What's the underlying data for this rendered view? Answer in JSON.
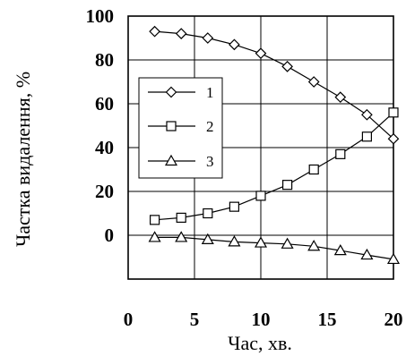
{
  "chart_data": {
    "type": "line",
    "title": "",
    "xlabel": "Час, хв.",
    "ylabel": "Частка видалення, %",
    "xlim": [
      0,
      20
    ],
    "ylim": [
      -20,
      100
    ],
    "x_ticks": [
      0,
      5,
      10,
      15,
      20
    ],
    "x_tick_labels": [
      "0",
      "5",
      "10",
      "15",
      "20"
    ],
    "y_ticks": [
      0,
      20,
      40,
      60,
      80,
      100
    ],
    "y_tick_labels": [
      "0",
      "20",
      "40",
      "60",
      "80",
      "100"
    ],
    "grid": true,
    "legend_position": "center-left",
    "colors": {
      "line": "#000000",
      "marker_fill": "#ffffff",
      "background": "#ffffff"
    },
    "series": [
      {
        "name": "1",
        "marker": "diamond",
        "x": [
          2,
          4,
          6,
          8,
          10,
          12,
          14,
          16,
          18,
          20
        ],
        "y": [
          93,
          92,
          90,
          87,
          83,
          77,
          70,
          63,
          55,
          44
        ]
      },
      {
        "name": "2",
        "marker": "square",
        "x": [
          2,
          4,
          6,
          8,
          10,
          12,
          14,
          16,
          18,
          20
        ],
        "y": [
          7,
          8,
          10,
          13,
          18,
          23,
          30,
          37,
          45,
          56
        ]
      },
      {
        "name": "3",
        "marker": "triangle",
        "x": [
          2,
          4,
          6,
          8,
          10,
          12,
          14,
          16,
          18,
          20
        ],
        "y": [
          -1,
          -1,
          -2,
          -3,
          -3.5,
          -4,
          -5,
          -7,
          -9,
          -11
        ]
      }
    ]
  }
}
